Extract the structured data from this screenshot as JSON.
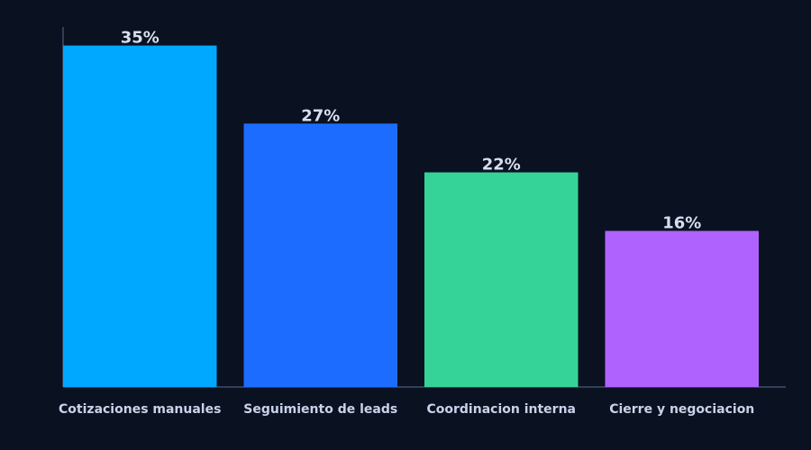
{
  "chart_data": {
    "type": "bar",
    "categories": [
      "Cotizaciones manuales",
      "Seguimiento de leads",
      "Coordinacion interna",
      "Cierre y negociacion"
    ],
    "values": [
      35,
      27,
      22,
      16
    ],
    "value_labels": [
      "35%",
      "27%",
      "22%",
      "16%"
    ],
    "title": "",
    "xlabel": "",
    "ylabel": "",
    "ylim": [
      0,
      36.9
    ],
    "grid": false,
    "legend": "none",
    "colors": [
      "#00a8ff",
      "#1c6dff",
      "#36d399",
      "#b062ff"
    ],
    "background": "#0a1120",
    "axis_color": "#5a6a8a"
  }
}
